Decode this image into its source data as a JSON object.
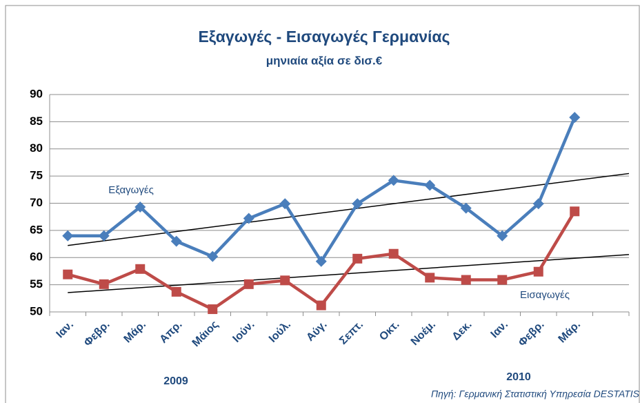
{
  "chart_data": {
    "type": "line",
    "title": "Εξαγωγές - Εισαγωγές Γερμανίας",
    "subtitle": "μηνιαία αξία σε δισ.€",
    "categories": [
      "Ιαν.",
      "Φεβρ.",
      "Μάρ.",
      "Απρ.",
      "Μάιος",
      "Ιούν.",
      "Ιούλ.",
      "Αύγ.",
      "Σεπτ.",
      "Οκτ.",
      "Νοέμ.",
      "Δεκ.",
      "Ιαν.",
      "Φεβρ.",
      "Μάρ.",
      null
    ],
    "series": [
      {
        "name": "Εξαγωγές",
        "color": "#4a7ebb",
        "marker": "diamond",
        "values": [
          64,
          64,
          69.3,
          63,
          60.2,
          67.2,
          69.9,
          59.3,
          69.9,
          74.2,
          73.3,
          69.1,
          64,
          69.9,
          85.8,
          null
        ]
      },
      {
        "name": "Εισαγωγές",
        "color": "#be4b48",
        "marker": "square",
        "values": [
          56.9,
          55.1,
          57.9,
          53.7,
          50.5,
          55.1,
          55.8,
          51.2,
          59.8,
          60.7,
          56.3,
          55.9,
          55.9,
          57.4,
          68.5,
          null
        ]
      }
    ],
    "trendline": "linear",
    "years": [
      "2009",
      "2010"
    ],
    "source": "Πηγή: Γερμανική Στατιστική Υπηρεσία DESTATIS",
    "ylim": [
      50,
      90
    ],
    "yticks": [
      50,
      55,
      60,
      65,
      70,
      75,
      80,
      85,
      90
    ],
    "grid": true
  }
}
